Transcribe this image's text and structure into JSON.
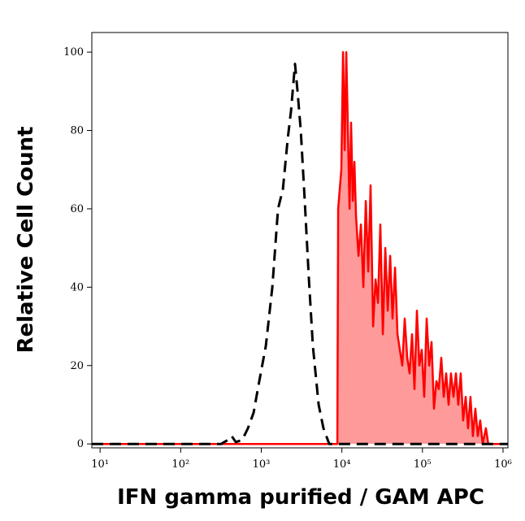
{
  "chart_data": {
    "type": "histogram-overlay",
    "xlabel": "IFN gamma purified / GAM APC",
    "ylabel": "Relative Cell Count",
    "xscale": "log",
    "xlim": [
      7.9,
      1150000
    ],
    "ylim": [
      -1,
      105
    ],
    "xticks": [
      {
        "value": 10,
        "label": "10¹"
      },
      {
        "value": 100,
        "label": "10²"
      },
      {
        "value": 1000,
        "label": "10³"
      },
      {
        "value": 10000,
        "label": "10⁴"
      },
      {
        "value": 100000,
        "label": "10⁵"
      },
      {
        "value": 1000000,
        "label": "10⁶"
      }
    ],
    "yticks": [
      0,
      20,
      40,
      60,
      80,
      100
    ],
    "series": [
      {
        "color": "#ff0000",
        "fill": "#ff9a9a",
        "dash": false,
        "x": [
          7.9,
          8790,
          8990,
          9860,
          10350,
          10830,
          11350,
          11890,
          12450,
          13030,
          13670,
          14320,
          15000,
          16070,
          17220,
          18490,
          19820,
          21230,
          22750,
          24430,
          26180,
          28050,
          30060,
          32280,
          34590,
          37070,
          39720,
          42560,
          45710,
          48980,
          52480,
          56230,
          60260,
          64710,
          69340,
          74300,
          79620,
          85310,
          91620,
          98170,
          105200,
          112700,
          121100,
          129700,
          139000,
          148900,
          159600,
          171400,
          183700,
          196800,
          210900,
          225900,
          242700,
          260000,
          278600,
          298500,
          319900,
          343600,
          368100,
          394500,
          422700,
          452900,
          486400,
          521200,
          558500,
          612400,
          656200,
          1150000
        ],
        "values": [
          0,
          0,
          60,
          70,
          100,
          75,
          100,
          80,
          60,
          82,
          62,
          72,
          58,
          48,
          56,
          40,
          62,
          44,
          66,
          30,
          42,
          36,
          56,
          28,
          50,
          34,
          48,
          32,
          45,
          28,
          24,
          20,
          32,
          22,
          18,
          28,
          14,
          34,
          20,
          24,
          12,
          32,
          20,
          26,
          9,
          16,
          14,
          22,
          12,
          18,
          10,
          18,
          12,
          18,
          10,
          18,
          6,
          12,
          4,
          12,
          2,
          9,
          2,
          6,
          0,
          4,
          0,
          0
        ]
      },
      {
        "color": "#000000",
        "fill": null,
        "dash": true,
        "x": [
          7.9,
          318,
          383,
          430,
          482,
          580,
          684,
          804,
          925,
          1138,
          1371,
          1614,
          1854,
          2133,
          2339,
          2625,
          2818,
          3090,
          3467,
          3899,
          4375,
          5152,
          5916,
          6966,
          1150000
        ],
        "values": [
          0,
          0,
          1,
          2,
          0.5,
          1,
          4,
          8,
          15,
          25,
          40,
          60,
          65,
          78,
          85,
          97,
          90,
          80,
          62,
          42,
          25,
          10,
          4,
          0,
          0
        ]
      }
    ]
  }
}
